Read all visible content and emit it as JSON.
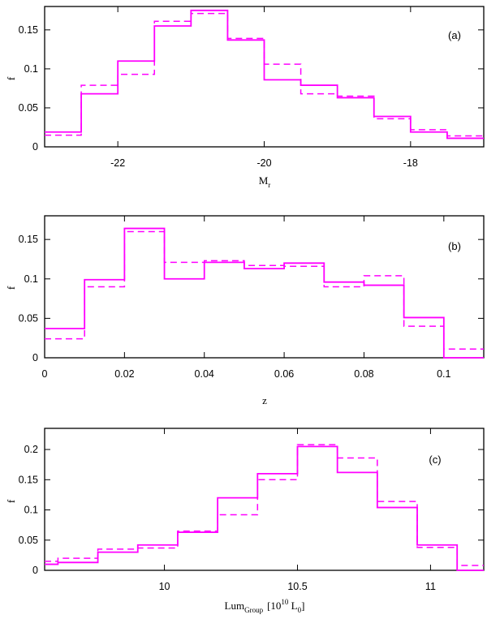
{
  "chart_data": [
    {
      "type": "histogram",
      "panel_tag": "(a)",
      "ylabel": "f",
      "xlabel_main": "M",
      "xlabel_sub": "r",
      "xlim": [
        -23,
        -17
      ],
      "ylim": [
        0,
        0.18
      ],
      "xticks": [
        -22,
        -20,
        -18
      ],
      "xtick_labels": [
        "-22",
        "-20",
        "-18"
      ],
      "yticks": [
        0,
        0.05,
        0.1,
        0.15
      ],
      "ytick_labels": [
        "0",
        "0.05",
        "0.1",
        "0.15"
      ],
      "bin_edges": [
        -23,
        -22.5,
        -22,
        -21.5,
        -21,
        -20.5,
        -20,
        -19.5,
        -19,
        -18.5,
        -18,
        -17.5,
        -17
      ],
      "series": [
        {
          "name": "solid",
          "values": [
            0.019,
            0.068,
            0.11,
            0.155,
            0.175,
            0.137,
            0.086,
            0.079,
            0.063,
            0.039,
            0.019,
            0.011
          ]
        },
        {
          "name": "dashed",
          "values": [
            0.015,
            0.079,
            0.093,
            0.161,
            0.171,
            0.139,
            0.106,
            0.068,
            0.065,
            0.036,
            0.022,
            0.014
          ]
        }
      ]
    },
    {
      "type": "histogram",
      "panel_tag": "(b)",
      "ylabel": "f",
      "xlabel_main": "z",
      "xlabel_sub": "",
      "xlim": [
        0,
        0.11
      ],
      "ylim": [
        0,
        0.18
      ],
      "xticks": [
        0,
        0.02,
        0.04,
        0.06,
        0.08,
        0.1
      ],
      "xtick_labels": [
        "0",
        "0.02",
        "0.04",
        "0.06",
        "0.08",
        "0.1"
      ],
      "yticks": [
        0,
        0.05,
        0.1,
        0.15
      ],
      "ytick_labels": [
        "0",
        "0.05",
        "0.1",
        "0.15"
      ],
      "bin_edges": [
        0,
        0.01,
        0.02,
        0.03,
        0.04,
        0.05,
        0.06,
        0.07,
        0.08,
        0.09,
        0.1,
        0.11
      ],
      "series": [
        {
          "name": "solid",
          "values": [
            0.037,
            0.099,
            0.164,
            0.1,
            0.121,
            0.113,
            0.12,
            0.096,
            0.092,
            0.051,
            0.0
          ]
        },
        {
          "name": "dashed",
          "values": [
            0.024,
            0.09,
            0.16,
            0.121,
            0.123,
            0.117,
            0.116,
            0.09,
            0.104,
            0.04,
            0.011
          ]
        }
      ]
    },
    {
      "type": "histogram",
      "panel_tag": "(c)",
      "ylabel": "f",
      "xlabel_main": "Lum",
      "xlabel_sub": "Group",
      "xlabel_tail": "[10",
      "xlabel_sup": "10",
      "xlabel_end": " L",
      "xlabel_end_sub": "0",
      "xlabel_close": "]",
      "xlim": [
        9.55,
        11.2
      ],
      "ylim": [
        0,
        0.235
      ],
      "xticks": [
        10,
        10.5,
        11
      ],
      "xtick_labels": [
        "10",
        "10.5",
        "11"
      ],
      "yticks": [
        0,
        0.05,
        0.1,
        0.15,
        0.2
      ],
      "ytick_labels": [
        "0",
        "0.05",
        "0.1",
        "0.15",
        "0.2"
      ],
      "bin_edges": [
        9.55,
        9.6,
        9.75,
        9.9,
        10.05,
        10.2,
        10.35,
        10.5,
        10.65,
        10.8,
        10.95,
        11.1,
        11.2
      ],
      "series": [
        {
          "name": "solid",
          "values": [
            0.01,
            0.013,
            0.03,
            0.042,
            0.063,
            0.12,
            0.16,
            0.205,
            0.162,
            0.104,
            0.042,
            0.0
          ]
        },
        {
          "name": "dashed",
          "values": [
            0.015,
            0.02,
            0.035,
            0.037,
            0.065,
            0.092,
            0.15,
            0.208,
            0.186,
            0.114,
            0.038,
            0.008
          ]
        }
      ]
    }
  ]
}
